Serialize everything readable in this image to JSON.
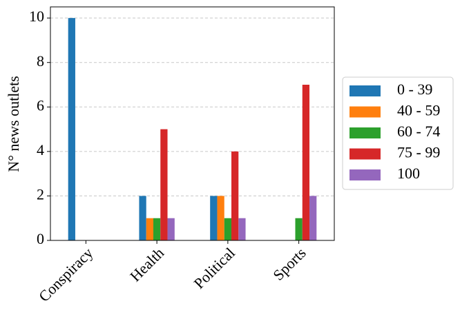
{
  "chart_data": {
    "type": "bar",
    "y_label": "N° news outlets",
    "categories": [
      "Conspiracy",
      "Health",
      "Political",
      "Sports"
    ],
    "series": [
      {
        "name": "0 - 39",
        "color": "#1f77b4",
        "values": [
          10,
          2,
          2,
          0
        ]
      },
      {
        "name": "40 - 59",
        "color": "#ff7f0e",
        "values": [
          0,
          1,
          2,
          0
        ]
      },
      {
        "name": "60 - 74",
        "color": "#2ca02c",
        "values": [
          0,
          1,
          1,
          1
        ]
      },
      {
        "name": "75 - 99",
        "color": "#d62728",
        "values": [
          0,
          5,
          4,
          7
        ]
      },
      {
        "name": "100",
        "color": "#9467bd",
        "values": [
          0,
          1,
          1,
          2
        ]
      }
    ],
    "ylim": [
      0,
      10.5
    ],
    "yticks": [
      0,
      2,
      4,
      6,
      8,
      10
    ],
    "grid": true,
    "legend": "right"
  }
}
